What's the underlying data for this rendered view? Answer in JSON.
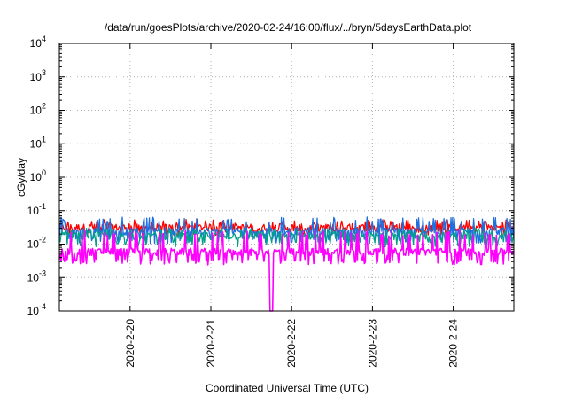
{
  "chart_data": {
    "type": "line",
    "title": "/data/run/goesPlots/archive/2020-02-24/16:00/flux/../bryn/5daysEarthData.plot",
    "xlabel": "Coordinated Universal Time (UTC)",
    "ylabel": "cGy/day",
    "yscale": "log",
    "ylim": [
      0.0001,
      10000
    ],
    "y_ticks": [
      {
        "value": 0.0001,
        "base": "10",
        "exp": "-4"
      },
      {
        "value": 0.001,
        "base": "10",
        "exp": "-3"
      },
      {
        "value": 0.01,
        "base": "10",
        "exp": "-2"
      },
      {
        "value": 0.1,
        "base": "10",
        "exp": "-1"
      },
      {
        "value": 1,
        "base": "10",
        "exp": "0"
      },
      {
        "value": 10,
        "base": "10",
        "exp": "1"
      },
      {
        "value": 100,
        "base": "10",
        "exp": "2"
      },
      {
        "value": 1000,
        "base": "10",
        "exp": "3"
      },
      {
        "value": 10000,
        "base": "10",
        "exp": "4"
      }
    ],
    "xlim": [
      "2020-02-19T03:00",
      "2020-02-24T18:00"
    ],
    "x_ticks": [
      {
        "value": "2020-02-20T00:00",
        "label": "2020-2-20"
      },
      {
        "value": "2020-02-21T00:00",
        "label": "2020-2-21"
      },
      {
        "value": "2020-02-22T00:00",
        "label": "2020-2-22"
      },
      {
        "value": "2020-02-23T00:00",
        "label": "2020-2-23"
      },
      {
        "value": "2020-02-24T00:00",
        "label": "2020-2-24"
      }
    ],
    "grid": true,
    "series": [
      {
        "color": "#ff0000",
        "level": 0.032,
        "low": 0.022,
        "high": 0.055
      },
      {
        "color": "#1f6fe0",
        "level": 0.025,
        "low": 0.013,
        "high": 0.065
      },
      {
        "color": "#00a08a",
        "level": 0.018,
        "low": 0.01,
        "high": 0.03
      },
      {
        "color": "#ff00ff",
        "level": 0.006,
        "low": 0.003,
        "high": 0.025,
        "dropout": {
          "start": "2020-02-21T17:30",
          "end": "2020-02-21T18:30"
        }
      }
    ]
  }
}
